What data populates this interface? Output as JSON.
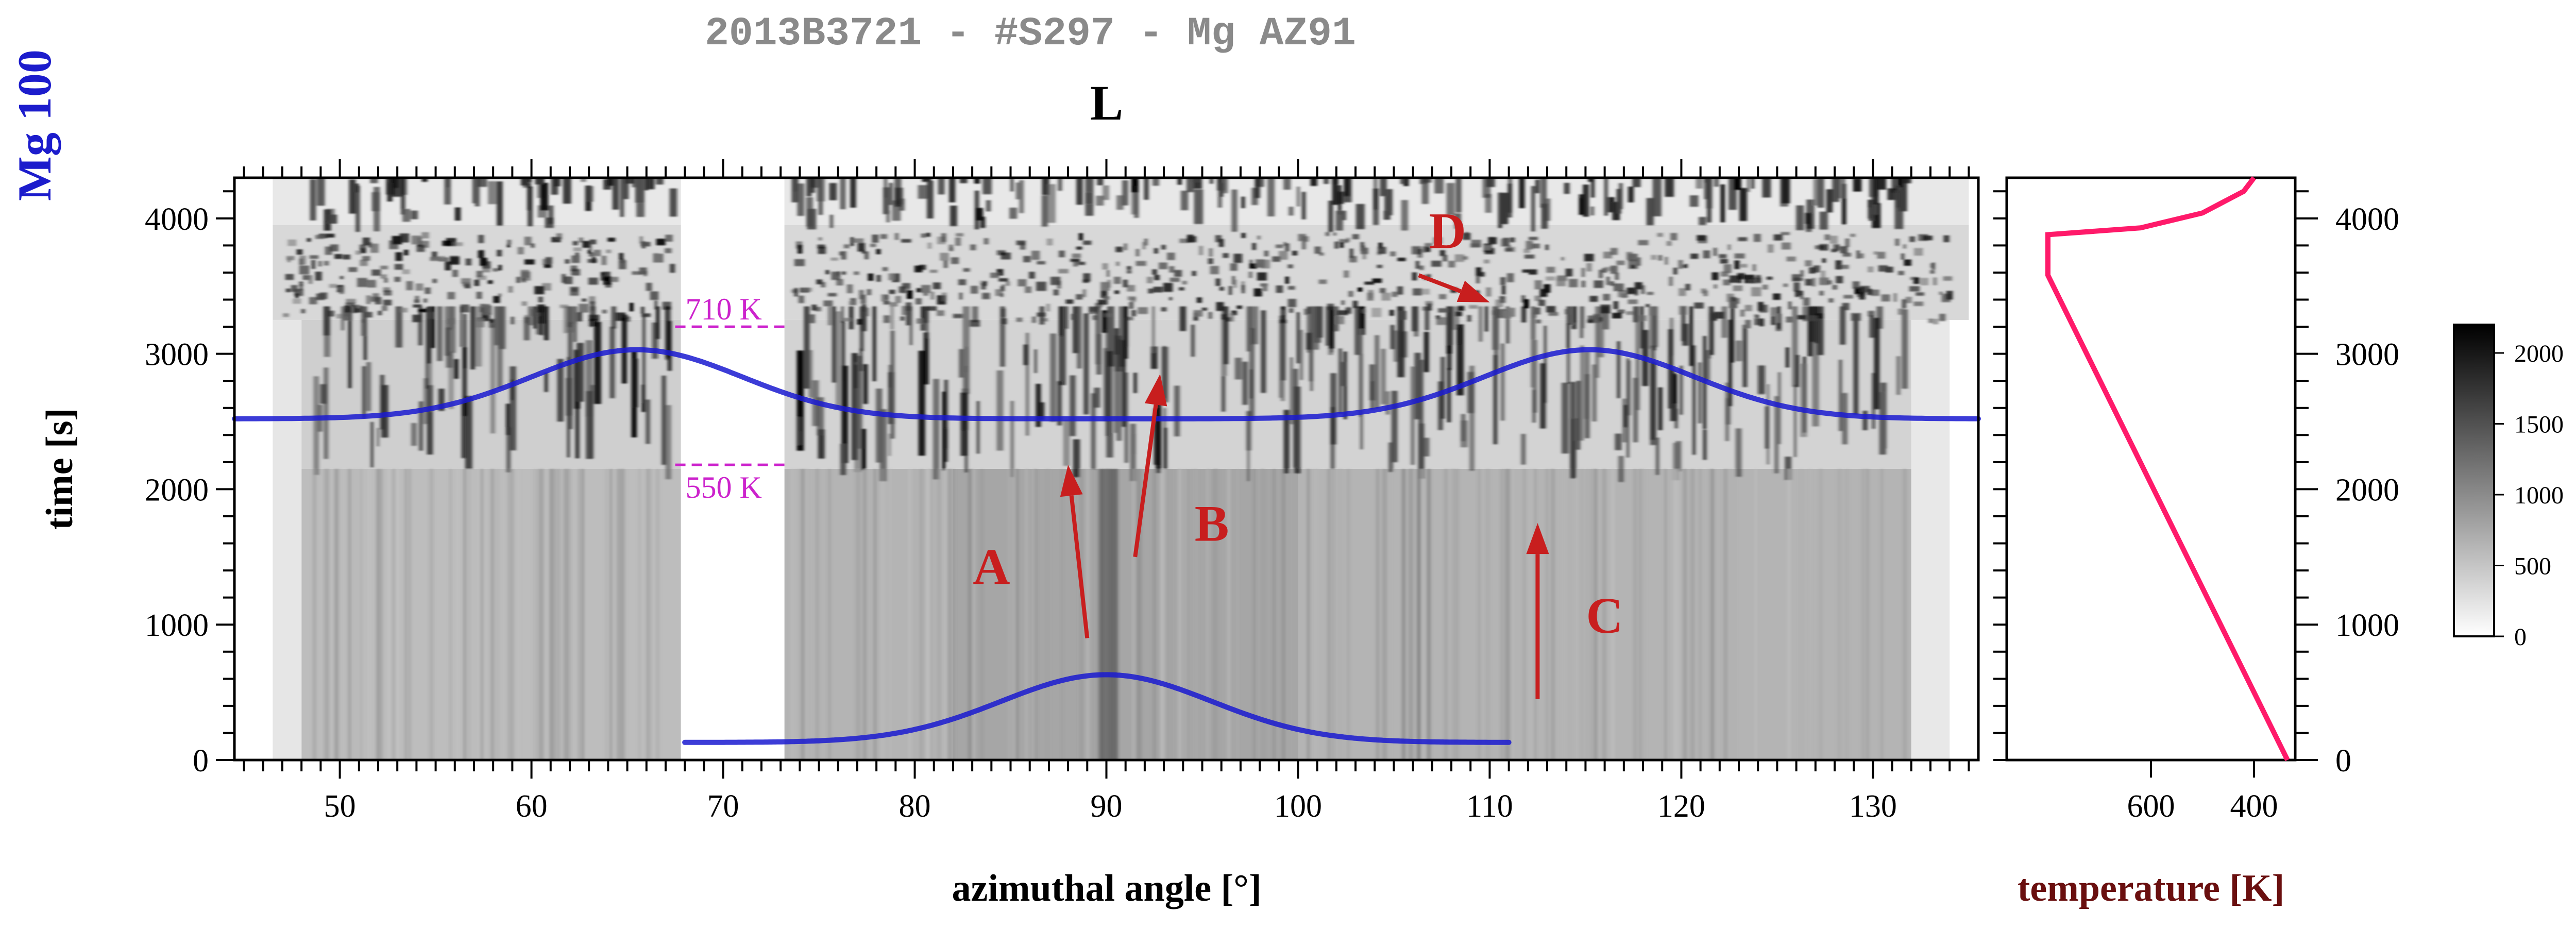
{
  "header": {
    "title": "2013B3721 - #S297 - Mg AZ91",
    "side_label": "Mg 100",
    "panel_label": "L"
  },
  "chart_data": [
    {
      "type": "heatmap",
      "xlabel": "azimuthal angle [°]",
      "ylabel": "time [s]",
      "xlim": [
        44.5,
        135.5
      ],
      "ylim": [
        0,
        4300
      ],
      "x_ticks": [
        50,
        60,
        70,
        80,
        90,
        100,
        110,
        120,
        130
      ],
      "y_ticks": [
        0,
        1000,
        2000,
        3000,
        4000
      ],
      "y_ticks_right": [
        0,
        1000,
        2000,
        3000,
        4000
      ],
      "grid": false,
      "colorbar": {
        "ticks": [
          0,
          500,
          1000,
          1500,
          2000
        ],
        "range": [
          0,
          2200
        ],
        "colormap": "white-to-black"
      },
      "blank_band_x": [
        67.8,
        73.2
      ],
      "temperature_marks": [
        {
          "label": "710 K",
          "time": 3200,
          "x_range": [
            67.5,
            73.2
          ]
        },
        {
          "label": "550 K",
          "time": 2180,
          "x_range": [
            67.5,
            73.2
          ]
        }
      ],
      "gaussian_overlays": [
        {
          "x_range": [
            44.5,
            135.5
          ],
          "baseline": 2520,
          "centers": [
            65.5,
            115.2
          ],
          "peak": 3030,
          "sigma": 5.5,
          "color": "#1a1ad0"
        },
        {
          "x_range": [
            68.0,
            111.0
          ],
          "baseline": 130,
          "centers": [
            90.0
          ],
          "peak": 630,
          "sigma": 5.5,
          "color": "#1a1ad0"
        }
      ],
      "annotations": [
        {
          "label": "A",
          "arrow_from": [
            89.0,
            900
          ],
          "arrow_to": [
            88.0,
            2180
          ],
          "label_at": [
            84.0,
            1300
          ]
        },
        {
          "label": "B",
          "arrow_from": [
            91.5,
            1500
          ],
          "arrow_to": [
            92.8,
            2850
          ],
          "label_at": [
            95.5,
            1620
          ]
        },
        {
          "label": "C",
          "arrow_from": [
            112.5,
            450
          ],
          "arrow_to": [
            112.5,
            1750
          ],
          "label_at": [
            116.0,
            940
          ]
        },
        {
          "label": "D",
          "arrow_from": [
            106.3,
            3580
          ],
          "arrow_to": [
            110.0,
            3380
          ],
          "label_at": [
            107.8,
            3780
          ]
        }
      ],
      "annotation_color": "#c81e1e",
      "mark_color": "#cc22cc"
    },
    {
      "type": "line",
      "xlabel": "temperature [K]",
      "x_ticks": [
        600,
        400
      ],
      "x_axis_reversed": true,
      "xlim": [
        880,
        320
      ],
      "ylim": [
        0,
        4300
      ],
      "series": [
        {
          "color": "#ff1a6a",
          "points": [
            {
              "temperature": 335,
              "time": 0
            },
            {
              "temperature": 800,
              "time": 3580
            },
            {
              "temperature": 800,
              "time": 3880
            },
            {
              "temperature": 620,
              "time": 3930
            },
            {
              "temperature": 500,
              "time": 4040
            },
            {
              "temperature": 420,
              "time": 4200
            },
            {
              "temperature": 400,
              "time": 4300
            }
          ]
        }
      ]
    }
  ]
}
